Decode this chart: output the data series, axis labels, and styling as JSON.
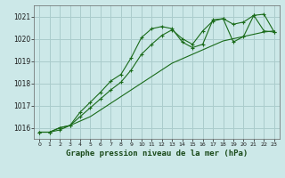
{
  "title": "Graphe pression niveau de la mer (hPa)",
  "bg_color": "#cce8e8",
  "grid_color": "#aacccc",
  "line_color": "#1a6b1a",
  "xlim": [
    -0.5,
    23.5
  ],
  "ylim": [
    1015.5,
    1021.5
  ],
  "yticks": [
    1016,
    1017,
    1018,
    1019,
    1020,
    1021
  ],
  "xticks": [
    0,
    1,
    2,
    3,
    4,
    5,
    6,
    7,
    8,
    9,
    10,
    11,
    12,
    13,
    14,
    15,
    16,
    17,
    18,
    19,
    20,
    21,
    22,
    23
  ],
  "series1_x": [
    0,
    1,
    2,
    3,
    4,
    5,
    6,
    7,
    8,
    9,
    10,
    11,
    12,
    13,
    14,
    15,
    16,
    17,
    18,
    19,
    20,
    21,
    22,
    23
  ],
  "series1_y": [
    1015.8,
    1015.8,
    1016.0,
    1016.1,
    1016.3,
    1016.5,
    1016.8,
    1017.1,
    1017.4,
    1017.7,
    1018.0,
    1018.3,
    1018.6,
    1018.9,
    1019.1,
    1019.3,
    1019.5,
    1019.7,
    1019.9,
    1020.0,
    1020.1,
    1020.2,
    1020.3,
    1020.35
  ],
  "series2_x": [
    0,
    1,
    2,
    3,
    4,
    5,
    6,
    7,
    8,
    9,
    10,
    11,
    12,
    13,
    14,
    15,
    16,
    17,
    18,
    19,
    20,
    21,
    22,
    23
  ],
  "series2_y": [
    1015.8,
    1015.8,
    1015.9,
    1016.1,
    1016.7,
    1017.15,
    1017.6,
    1018.1,
    1018.4,
    1019.15,
    1020.05,
    1020.45,
    1020.55,
    1020.45,
    1019.85,
    1019.6,
    1019.75,
    1020.85,
    1020.9,
    1019.85,
    1020.1,
    1021.05,
    1020.35,
    1020.3
  ],
  "series3_x": [
    0,
    1,
    2,
    3,
    4,
    5,
    6,
    7,
    8,
    9,
    10,
    11,
    12,
    13,
    14,
    15,
    16,
    17,
    18,
    19,
    20,
    21,
    22,
    23
  ],
  "series3_y": [
    1015.8,
    1015.8,
    1016.0,
    1016.1,
    1016.5,
    1016.9,
    1017.3,
    1017.7,
    1018.05,
    1018.6,
    1019.3,
    1019.75,
    1020.15,
    1020.4,
    1020.0,
    1019.75,
    1020.35,
    1020.8,
    1020.9,
    1020.65,
    1020.75,
    1021.05,
    1021.1,
    1020.3
  ]
}
